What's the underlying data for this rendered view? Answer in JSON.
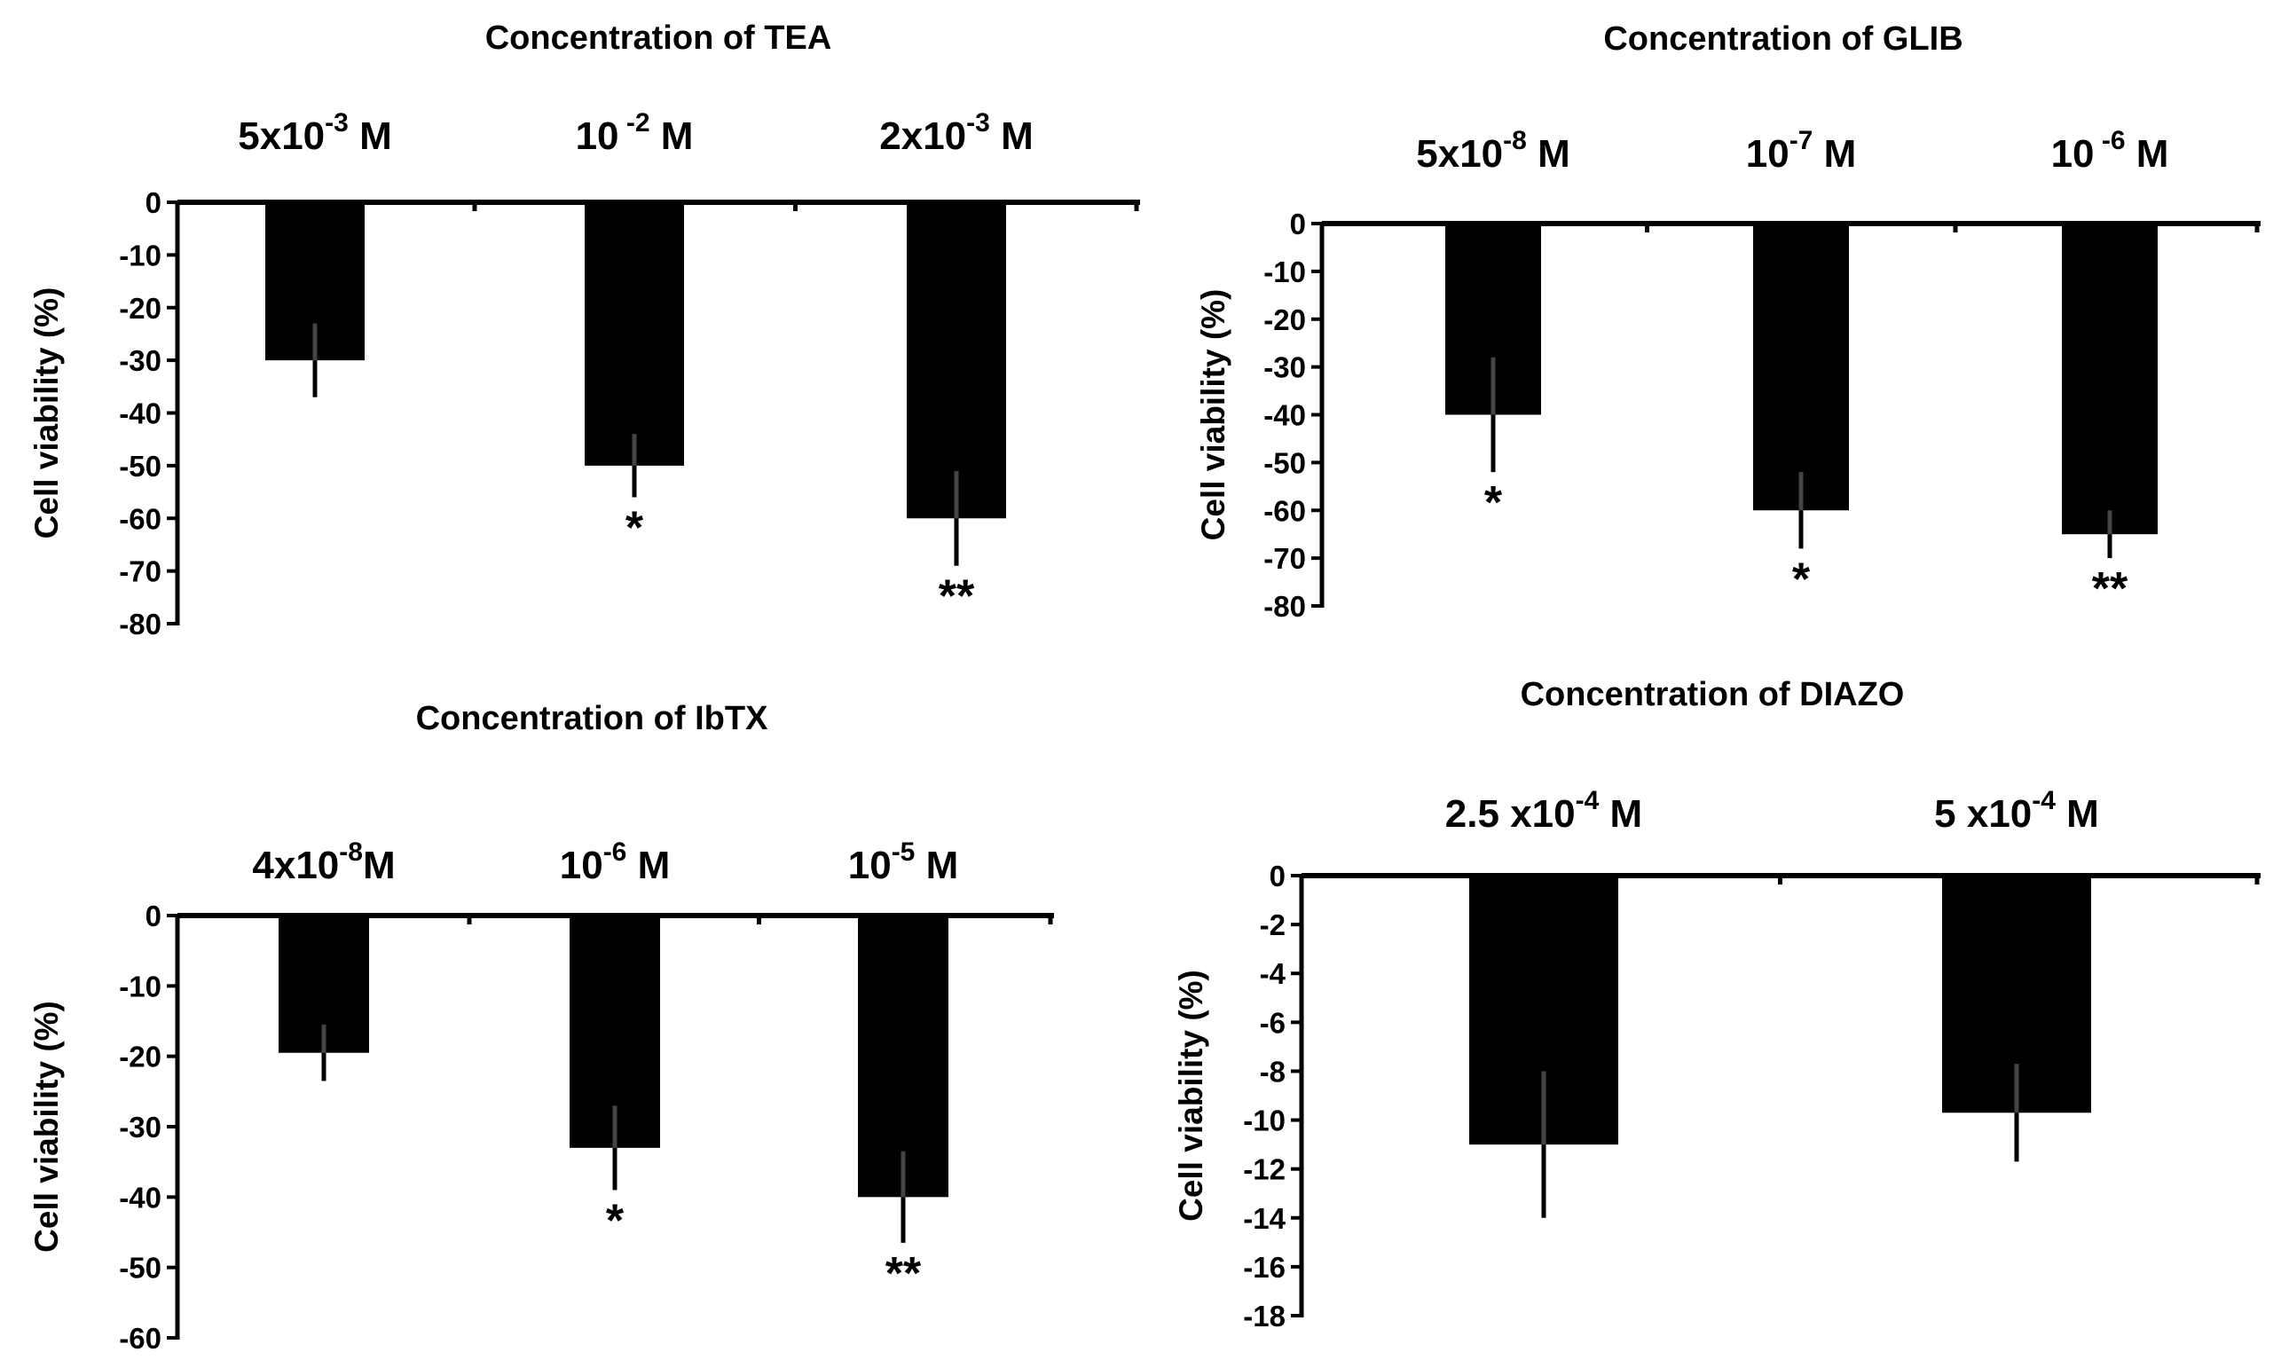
{
  "chart_data": [
    {
      "type": "bar",
      "title": "Concentration of TEA",
      "ylabel": "Cell viability (%)",
      "xlabel": "",
      "ylim": [
        -80,
        0
      ],
      "ytick_step": 10,
      "categories": [
        {
          "base": "5x10",
          "exp": "-3",
          "unit": " M"
        },
        {
          "base": "10",
          "exp": " -2",
          "unit": " M"
        },
        {
          "base": "2x10",
          "exp": "-3",
          "unit": " M"
        }
      ],
      "values": [
        -30,
        -50,
        -60
      ],
      "errors": [
        7,
        6,
        9
      ],
      "significance": [
        "",
        "*",
        "**"
      ]
    },
    {
      "type": "bar",
      "title": "Concentration of GLIB",
      "ylabel": "Cell viability (%)",
      "xlabel": "",
      "ylim": [
        -80,
        0
      ],
      "ytick_step": 10,
      "categories": [
        {
          "base": "5x10",
          "exp": "-8",
          "unit": " M"
        },
        {
          "base": "10",
          "exp": "-7",
          "unit": " M"
        },
        {
          "base": "10",
          "exp": " -6",
          "unit": " M"
        }
      ],
      "values": [
        -40,
        -60,
        -65
      ],
      "errors": [
        12,
        8,
        5
      ],
      "significance": [
        "*",
        "*",
        "**"
      ]
    },
    {
      "type": "bar",
      "title": "Concentration of  IbTX",
      "ylabel": "Cell viability (%)",
      "xlabel": "",
      "ylim": [
        -60,
        0
      ],
      "ytick_step": 10,
      "categories": [
        {
          "base": "4x10",
          "exp": "-8",
          "unit": "M"
        },
        {
          "base": "10",
          "exp": "-6",
          "unit": " M"
        },
        {
          "base": "10",
          "exp": "-5",
          "unit": " M"
        }
      ],
      "values": [
        -19.5,
        -33,
        -40
      ],
      "errors": [
        4,
        6,
        6.5
      ],
      "significance": [
        "",
        "*",
        "**"
      ]
    },
    {
      "type": "bar",
      "title": "Concentration of  DIAZO",
      "ylabel": "Cell viability (%)",
      "xlabel": "",
      "ylim": [
        -18,
        0
      ],
      "ytick_step": 2,
      "categories": [
        {
          "base": "2.5 x10",
          "exp": "-4",
          "unit": " M"
        },
        {
          "base": "5 x10",
          "exp": "-4",
          "unit": " M"
        }
      ],
      "values": [
        -11,
        -9.7
      ],
      "errors": [
        3,
        2
      ],
      "significance": [
        "",
        ""
      ]
    }
  ]
}
